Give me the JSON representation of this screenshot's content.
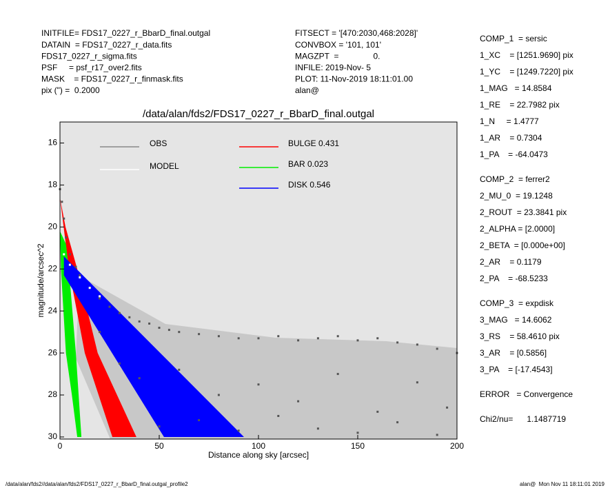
{
  "header": {
    "left": [
      "INITFILE= FDS17_0227_r_BbarD_final.outgal",
      "DATAIN  = FDS17_0227_r_data.fits",
      "FDS17_0227_r_sigma.fits",
      "PSF     = psf_r17_over2.fits",
      "MASK    = FDS17_0227_r_finmask.fits",
      "pix (\") =  0.2000"
    ],
    "middle": [
      "FITSECT = '[470:2030,468:2028]'",
      "CONVBOX = '101, 101'",
      "MAGZPT  =               0.",
      "INFILE: 2019-Nov- 5",
      "PLOT: 11-Nov-2019 18:11:01.00",
      "alan@"
    ]
  },
  "sidebar": [
    [
      "COMP_1  = sersic",
      "1_XC    = [1251.9690] pix",
      "1_YC    = [1249.7220] pix",
      "1_MAG   = 14.8584",
      "1_RE    = 22.7982 pix",
      "1_N     = 1.4777",
      "1_AR    = 0.7304",
      "1_PA    = -64.0473"
    ],
    [
      "COMP_2  = ferrer2",
      "2_MU_0  = 19.1248",
      "2_ROUT  = 23.3841 pix",
      "2_ALPHA = [2.0000]",
      "2_BETA  = [0.000e+00]",
      "2_AR    = 0.1179",
      "2_PA    = -68.5233"
    ],
    [
      "COMP_3  = expdisk",
      "3_MAG   = 14.6062",
      "3_RS    = 58.4610 pix",
      "3_AR    = [0.5856]",
      "3_PA    = [-17.4543]"
    ],
    [
      "ERROR   = Convergence"
    ],
    [
      "Chi2/nu=      1.1487719"
    ]
  ],
  "footer": {
    "left": "/data/alan/fds2//data/alan/fds2/FDS17_0227_r_BbarD_final.outgal_profile2",
    "right": "alan@  Mon Nov 11 18:11:01 2019"
  },
  "chart_data": {
    "type": "scatter",
    "title": "/data/alan/fds2/FDS17_0227_r_BbarD_final.outgal",
    "xlabel": "Distance along sky [arcsec]",
    "ylabel": "magnitude/arcsec^2",
    "xlim": [
      0,
      200
    ],
    "xticks": [
      0,
      50,
      100,
      150,
      200
    ],
    "ylim": [
      30.1,
      15
    ],
    "yticks": [
      16,
      18,
      20,
      22,
      24,
      26,
      28,
      30
    ],
    "series": [
      {
        "name": "OBS",
        "color": "#555555",
        "x": [
          0,
          1,
          2,
          3,
          5,
          8,
          10,
          15,
          20,
          25,
          30,
          35,
          40,
          45,
          50,
          55,
          60,
          70,
          80,
          90,
          100,
          110,
          120,
          130,
          140,
          150,
          160,
          170,
          180,
          190,
          200,
          20,
          30,
          40,
          60,
          80,
          100,
          120,
          140,
          160,
          180,
          195,
          50,
          70,
          90,
          110,
          130,
          150,
          170,
          190
        ],
        "values": [
          18.2,
          18.8,
          19.6,
          20.5,
          21.3,
          21.9,
          22.3,
          22.9,
          23.4,
          23.8,
          24.1,
          24.3,
          24.5,
          24.6,
          24.8,
          24.9,
          25.0,
          25.1,
          25.2,
          25.3,
          25.3,
          25.2,
          25.4,
          25.3,
          25.2,
          25.4,
          25.3,
          25.5,
          25.6,
          25.8,
          26.0,
          25.0,
          26.5,
          27.2,
          26.8,
          28.0,
          27.5,
          28.3,
          27.0,
          28.8,
          27.4,
          28.6,
          29.5,
          29.2,
          29.7,
          29.0,
          29.6,
          29.8,
          29.3,
          29.9
        ]
      },
      {
        "name": "MODEL",
        "color": "#ffffff",
        "x": [
          2,
          5,
          10,
          15,
          20
        ],
        "values": [
          21.3,
          21.8,
          22.4,
          22.9,
          23.3
        ]
      }
    ],
    "bands": [
      {
        "name": "BULGE 0.431",
        "color": "#ff0000",
        "left_x": [
          0,
          4.5,
          12.5,
          26.4
        ],
        "left": [
          18.6,
          22,
          26,
          30
        ],
        "right_x": [
          0,
          2.8,
          8.7,
          19,
          38.5
        ],
        "right": [
          18.6,
          20,
          22,
          26,
          30
        ]
      },
      {
        "name": "BAR 0.023",
        "color": "#00ee00",
        "left_x": [
          0,
          0.5,
          3,
          6,
          8.7
        ],
        "left": [
          20.2,
          22,
          26,
          28,
          30
        ],
        "right_x": [
          0,
          3,
          4.5,
          8,
          9.4,
          10.8
        ],
        "right": [
          20.2,
          20.8,
          22,
          26,
          28,
          30
        ]
      },
      {
        "name": "DISK 0.546",
        "color": "#0000ff",
        "left_x": [
          2,
          52.4
        ],
        "left": [
          22.3,
          30
        ],
        "right_x": [
          2,
          92.7
        ],
        "right": [
          21.4,
          30
        ]
      }
    ]
  }
}
